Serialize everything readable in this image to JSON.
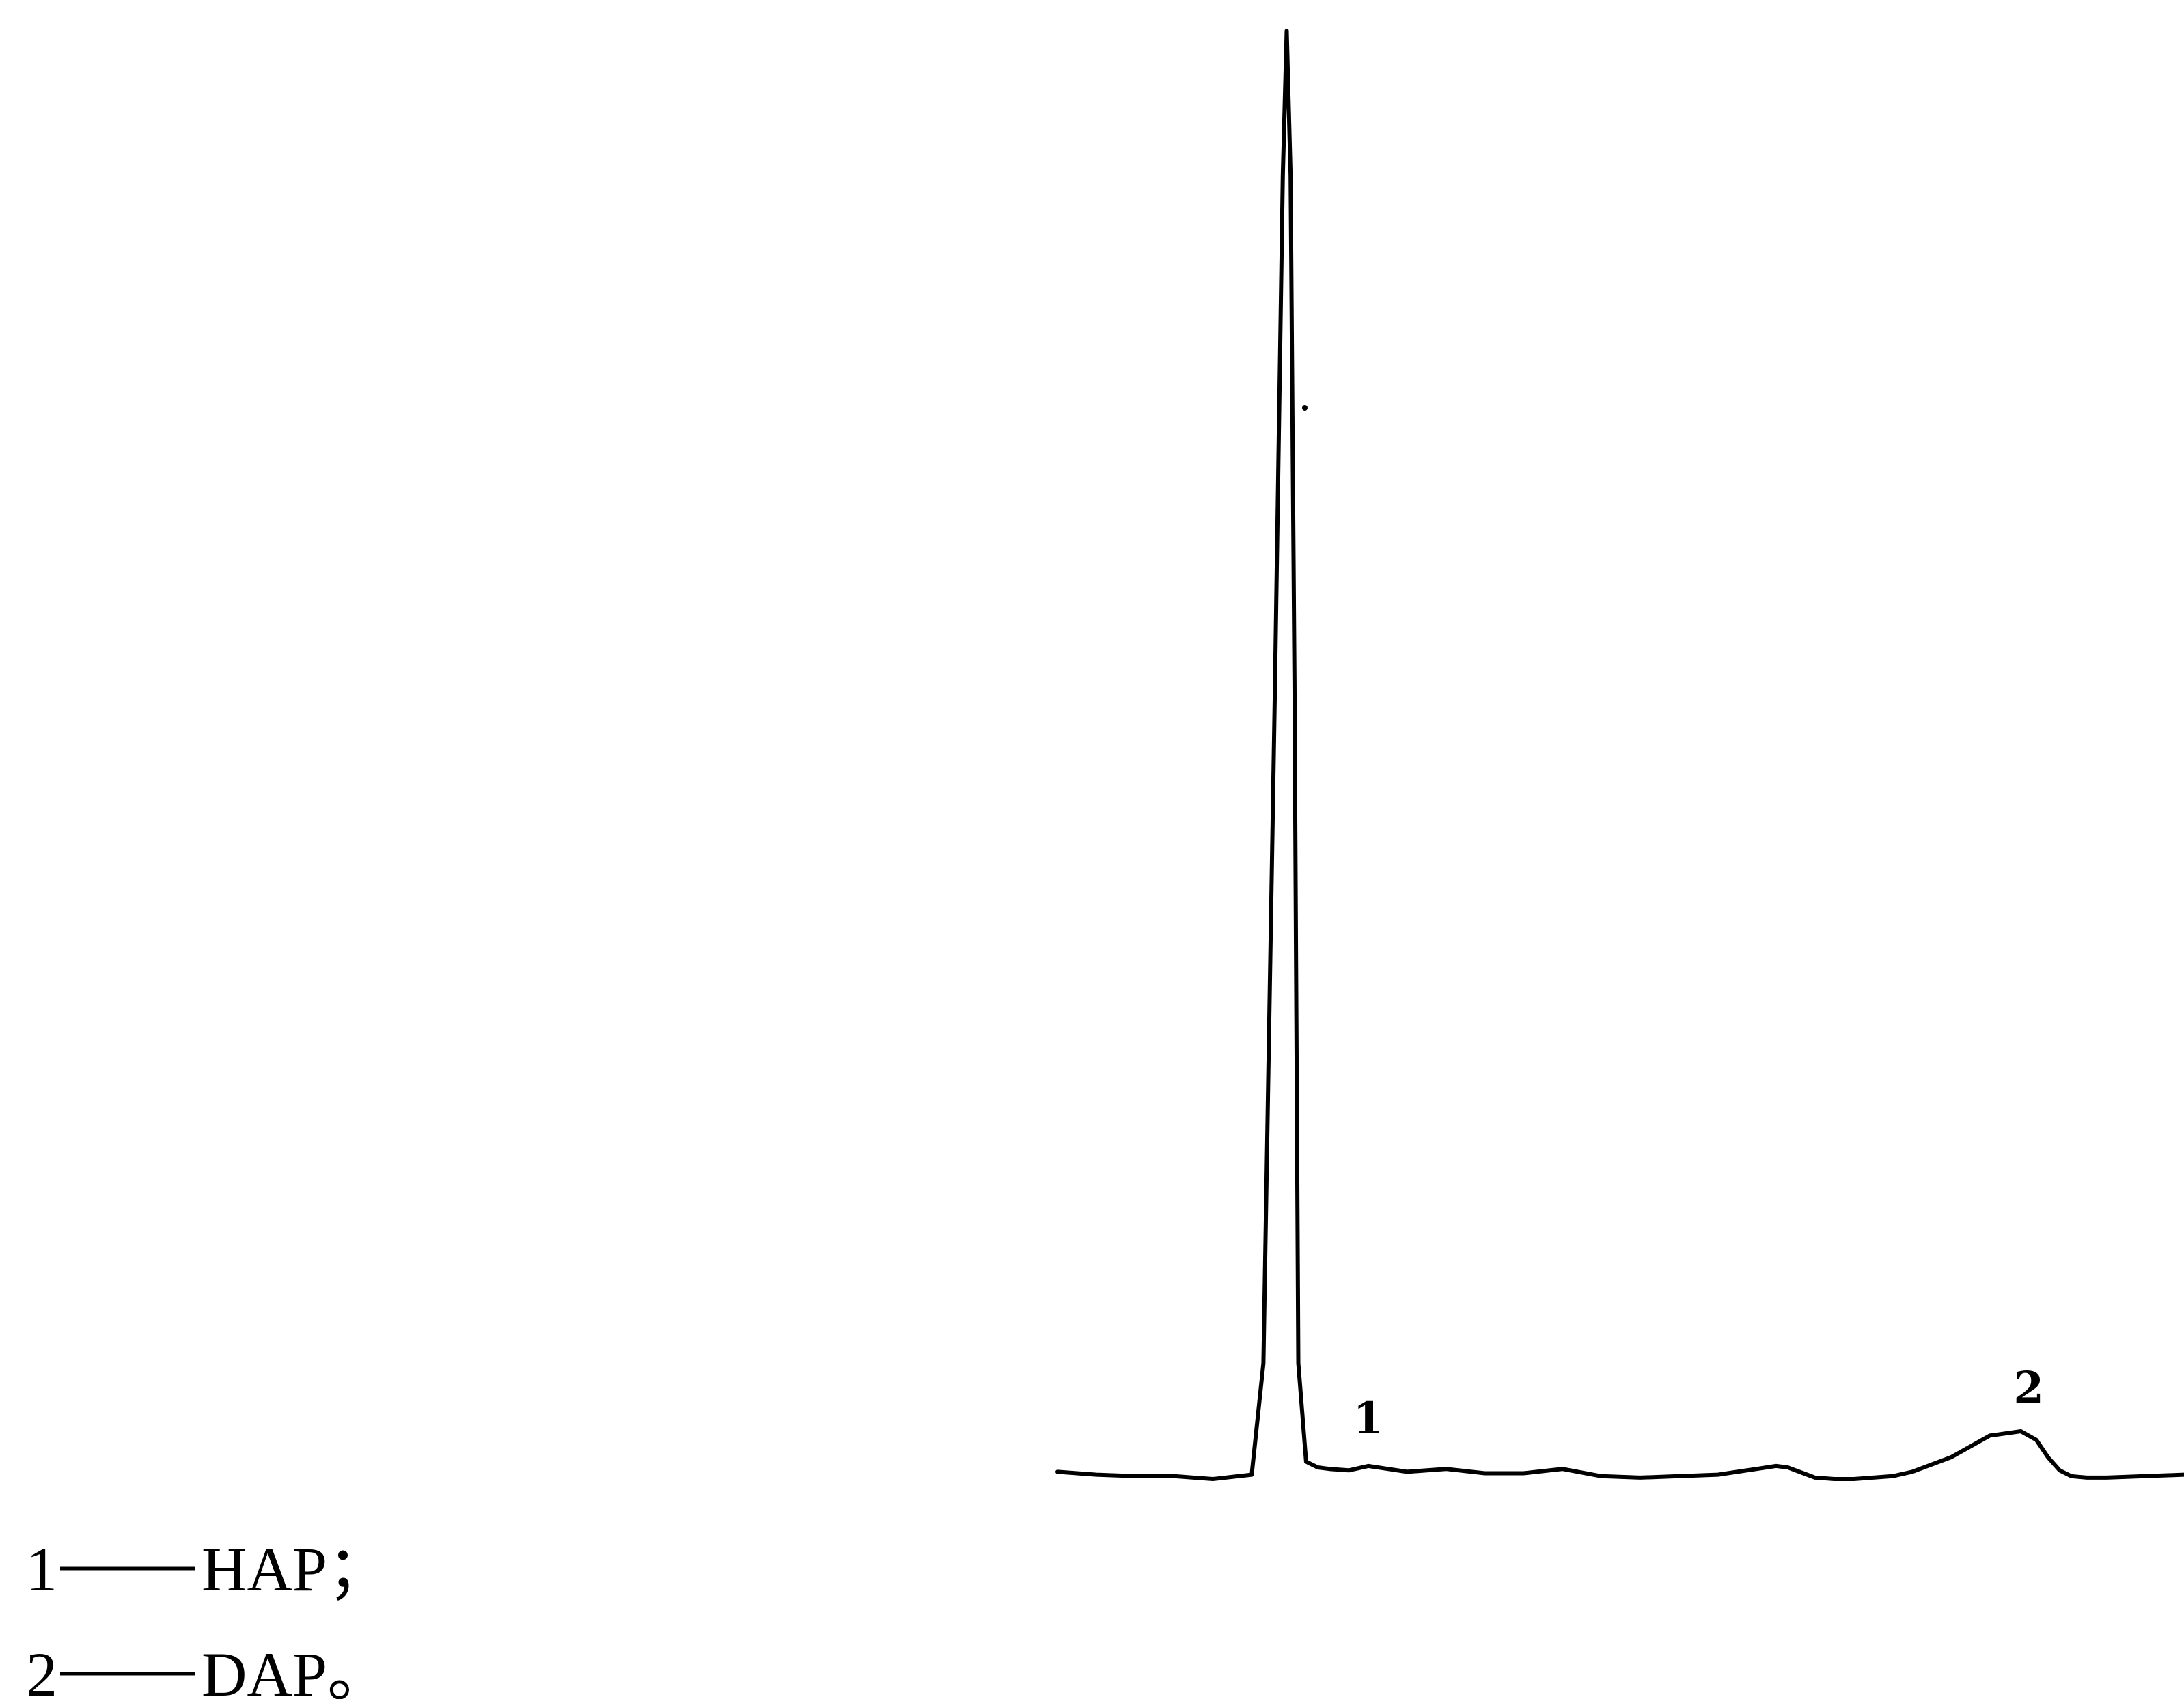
{
  "chart_data": {
    "type": "line",
    "title": "",
    "xlabel": "",
    "ylabel": "",
    "axes_visible": false,
    "grid": false,
    "trace_color": "#000000",
    "series": [
      {
        "x": [
          0,
          1,
          2,
          3,
          4,
          5,
          5.3,
          5.6,
          5.8,
          5.9,
          6.0,
          6.1,
          6.2,
          6.4,
          6.7,
          7.0,
          7.5,
          8.0,
          9.0,
          10.0,
          11.0,
          12.0,
          13.0,
          14.0,
          15.0,
          16.0,
          17.0,
          17.5,
          18.0,
          18.5,
          18.8,
          19.0,
          19.2,
          19.5,
          20.0,
          20.5,
          21.0,
          21.5,
          22.0,
          23.0,
          24.0,
          24.8,
          25.2,
          25.5,
          25.8,
          26.1,
          26.5,
          27.0,
          28.0,
          29.0
        ],
        "y": [
          0.5,
          0.3,
          0.2,
          0.2,
          0.0,
          0.3,
          8.0,
          55.0,
          90.0,
          100.0,
          90.0,
          55.0,
          8.0,
          1.2,
          0.8,
          0.7,
          0.6,
          0.9,
          0.5,
          0.7,
          0.4,
          0.4,
          0.7,
          0.2,
          0.1,
          0.2,
          0.3,
          0.5,
          0.7,
          0.9,
          0.8,
          0.6,
          0.4,
          0.1,
          0.0,
          0.0,
          0.1,
          0.2,
          0.5,
          1.5,
          3.0,
          3.3,
          2.7,
          1.5,
          0.6,
          0.2,
          0.1,
          0.1,
          0.2,
          0.3
        ]
      }
    ],
    "annotations": [
      {
        "label": "1",
        "x": 8.0
      },
      {
        "label": "2",
        "x": 25.0
      }
    ]
  },
  "legend": {
    "items": [
      {
        "number": "1",
        "name": "HAP；"
      },
      {
        "number": "2",
        "name": "DAP。"
      }
    ]
  }
}
